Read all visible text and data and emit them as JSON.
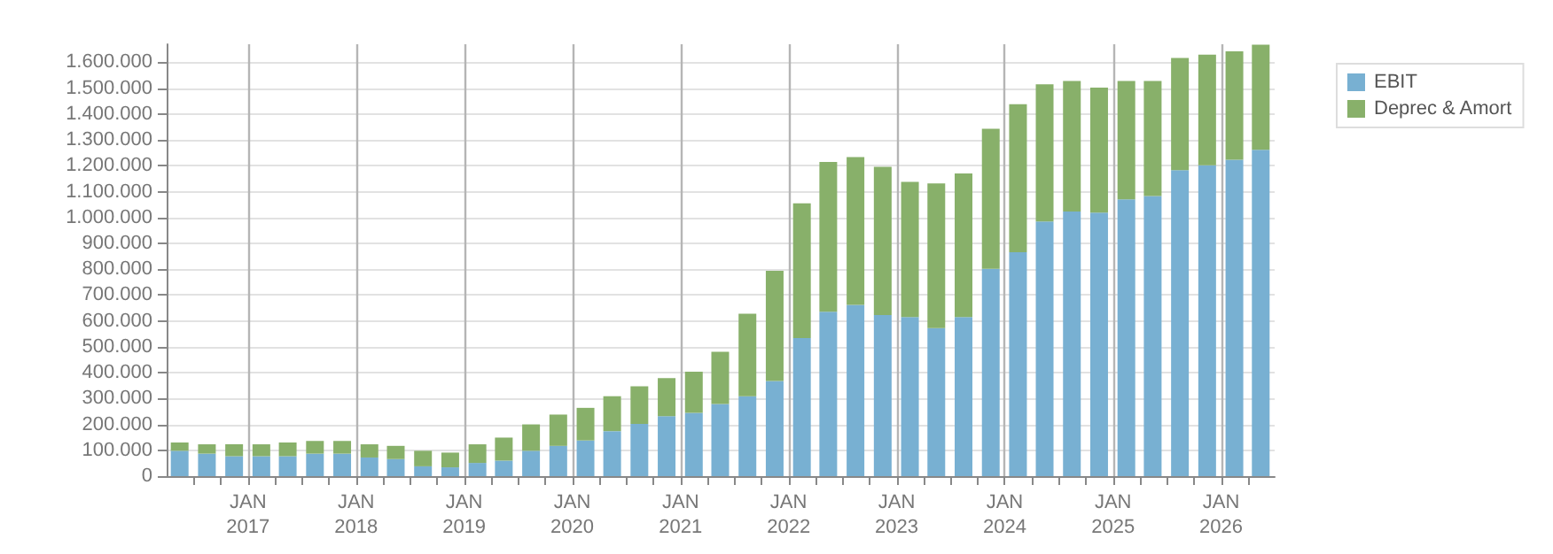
{
  "chart_data": {
    "type": "bar",
    "stacked": true,
    "x": [
      "2016-05-15",
      "2016-08-15",
      "2016-11-15",
      "2017-02-15",
      "2017-05-15",
      "2017-08-15",
      "2017-11-15",
      "2018-02-15",
      "2018-05-15",
      "2018-08-15",
      "2018-11-15",
      "2019-02-15",
      "2019-05-15",
      "2019-08-15",
      "2019-11-15",
      "2020-02-15",
      "2020-05-15",
      "2020-08-15",
      "2020-11-15",
      "2021-02-15",
      "2021-05-15",
      "2021-08-15",
      "2021-11-15",
      "2022-02-15",
      "2022-05-15",
      "2022-08-15",
      "2022-11-15",
      "2023-02-15",
      "2023-05-15",
      "2023-08-15",
      "2023-11-15",
      "2024-02-15",
      "2024-05-15",
      "2024-08-15",
      "2024-11-15",
      "2025-02-15",
      "2025-05-15",
      "2025-08-15",
      "2025-11-15",
      "2026-02-15",
      "2026-05-15"
    ],
    "series": [
      {
        "name": "EBIT",
        "color": "#78b0d2",
        "values": [
          98000,
          87000,
          77000,
          77000,
          77000,
          87000,
          87000,
          72000,
          66000,
          38000,
          34000,
          51000,
          60000,
          98000,
          117000,
          138000,
          174000,
          202000,
          232000,
          245000,
          279000,
          309000,
          368000,
          534000,
          636000,
          662000,
          623000,
          615000,
          572000,
          615000,
          802000,
          866000,
          985000,
          1023000,
          1019000,
          1070000,
          1083000,
          1183000,
          1202000,
          1223000,
          1262000
        ]
      },
      {
        "name": "Deprec & Amort",
        "color": "#88b06a",
        "values": [
          32000,
          36000,
          46000,
          46000,
          53000,
          49000,
          49000,
          51000,
          51000,
          60000,
          57000,
          72000,
          89000,
          102000,
          121000,
          126000,
          135000,
          145000,
          147000,
          159000,
          202000,
          319000,
          426000,
          521000,
          579000,
          572000,
          573000,
          523000,
          560000,
          555000,
          541000,
          572000,
          530000,
          505000,
          483000,
          458000,
          445000,
          434000,
          428000,
          420000,
          406000
        ]
      }
    ],
    "xlim": [
      "2016-04-01",
      "2026-07-01"
    ],
    "xticks": [
      {
        "value": "2016-07-01",
        "label": null
      },
      {
        "value": "2016-10-01",
        "label": null
      },
      {
        "value": "2017-01-01",
        "label": "JAN\n2017"
      },
      {
        "value": "2017-04-01",
        "label": null
      },
      {
        "value": "2017-07-01",
        "label": null
      },
      {
        "value": "2017-10-01",
        "label": null
      },
      {
        "value": "2018-01-01",
        "label": "JAN\n2018"
      },
      {
        "value": "2018-04-01",
        "label": null
      },
      {
        "value": "2018-07-01",
        "label": null
      },
      {
        "value": "2018-10-01",
        "label": null
      },
      {
        "value": "2019-01-01",
        "label": "JAN\n2019"
      },
      {
        "value": "2019-04-01",
        "label": null
      },
      {
        "value": "2019-07-01",
        "label": null
      },
      {
        "value": "2019-10-01",
        "label": null
      },
      {
        "value": "2020-01-01",
        "label": "JAN\n2020"
      },
      {
        "value": "2020-04-01",
        "label": null
      },
      {
        "value": "2020-07-01",
        "label": null
      },
      {
        "value": "2020-10-01",
        "label": null
      },
      {
        "value": "2021-01-01",
        "label": "JAN\n2021"
      },
      {
        "value": "2021-04-01",
        "label": null
      },
      {
        "value": "2021-07-01",
        "label": null
      },
      {
        "value": "2021-10-01",
        "label": null
      },
      {
        "value": "2022-01-01",
        "label": "JAN\n2022"
      },
      {
        "value": "2022-04-01",
        "label": null
      },
      {
        "value": "2022-07-01",
        "label": null
      },
      {
        "value": "2022-10-01",
        "label": null
      },
      {
        "value": "2023-01-01",
        "label": "JAN\n2023"
      },
      {
        "value": "2023-04-01",
        "label": null
      },
      {
        "value": "2023-07-01",
        "label": null
      },
      {
        "value": "2023-10-01",
        "label": null
      },
      {
        "value": "2024-01-01",
        "label": "JAN\n2024"
      },
      {
        "value": "2024-04-01",
        "label": null
      },
      {
        "value": "2024-07-01",
        "label": null
      },
      {
        "value": "2024-10-01",
        "label": null
      },
      {
        "value": "2025-01-01",
        "label": "JAN\n2025"
      },
      {
        "value": "2025-04-01",
        "label": null
      },
      {
        "value": "2025-07-01",
        "label": null
      },
      {
        "value": "2025-10-01",
        "label": null
      },
      {
        "value": "2026-01-01",
        "label": "JAN\n2026"
      },
      {
        "value": "2026-04-01",
        "label": null
      }
    ],
    "ylim": [
      0,
      1670000
    ],
    "yticks": [
      {
        "value": 0,
        "label": "0"
      },
      {
        "value": 100000,
        "label": "100.000"
      },
      {
        "value": 200000,
        "label": "200.000"
      },
      {
        "value": 300000,
        "label": "300.000"
      },
      {
        "value": 400000,
        "label": "400.000"
      },
      {
        "value": 500000,
        "label": "500.000"
      },
      {
        "value": 600000,
        "label": "600.000"
      },
      {
        "value": 700000,
        "label": "700.000"
      },
      {
        "value": 800000,
        "label": "800.000"
      },
      {
        "value": 900000,
        "label": "900.000"
      },
      {
        "value": 1000000,
        "label": "1.000.000"
      },
      {
        "value": 1100000,
        "label": "1.100.000"
      },
      {
        "value": 1200000,
        "label": "1.200.000"
      },
      {
        "value": 1300000,
        "label": "1.300.000"
      },
      {
        "value": 1400000,
        "label": "1.400.000"
      },
      {
        "value": 1500000,
        "label": "1.500.000"
      },
      {
        "value": 1600000,
        "label": "1.600.000"
      }
    ],
    "grid": true,
    "legend": "top right"
  }
}
